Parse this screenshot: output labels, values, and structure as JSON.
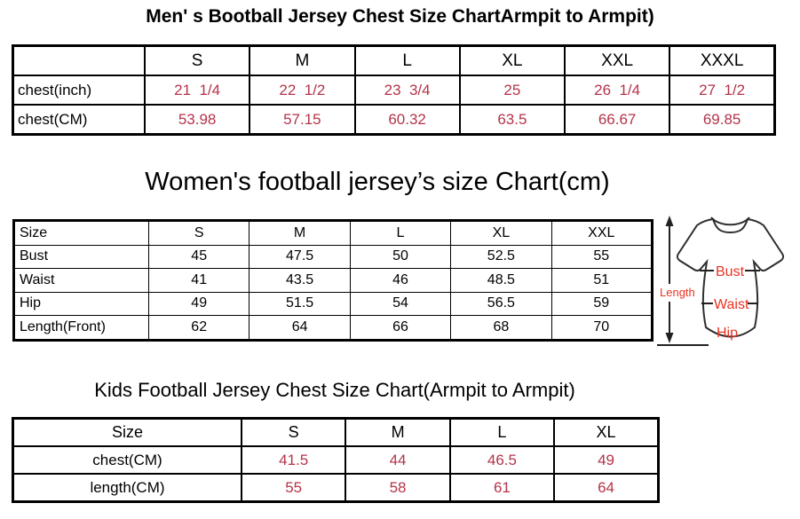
{
  "colors": {
    "table_value_red": "#b43349",
    "diagram_label_red": "#ea3323",
    "line_black": "#000000"
  },
  "chart_data": [
    {
      "type": "table",
      "title": "Men' s Bootball Jersey Chest Size ChartArmpit to Armpit)",
      "columns": [
        "",
        "S",
        "M",
        "L",
        "XL",
        "XXL",
        "XXXL"
      ],
      "rows": [
        {
          "label": "chest(inch)",
          "values": [
            "21  1/4",
            "22  1/2",
            "23  3/4",
            "25",
            "26  1/4",
            "27  1/2"
          ]
        },
        {
          "label": "chest(CM)",
          "values": [
            "53.98",
            "57.15",
            "60.32",
            "63.5",
            "66.67",
            "69.85"
          ]
        }
      ]
    },
    {
      "type": "table",
      "title": "Women's football jersey’s size Chart(cm)",
      "columns": [
        "Size",
        "S",
        "M",
        "L",
        "XL",
        "XXL"
      ],
      "rows": [
        {
          "label": "Bust",
          "values": [
            "45",
            "47.5",
            "50",
            "52.5",
            "55"
          ]
        },
        {
          "label": "Waist",
          "values": [
            "41",
            "43.5",
            "46",
            "48.5",
            "51"
          ]
        },
        {
          "label": "Hip",
          "values": [
            "49",
            "51.5",
            "54",
            "56.5",
            "59"
          ]
        },
        {
          "label": "Length(Front)",
          "values": [
            "62",
            "64",
            "66",
            "68",
            "70"
          ]
        }
      ]
    },
    {
      "type": "table",
      "title": "Kids Football Jersey Chest Size Chart(Armpit to Armpit)",
      "columns": [
        "Size",
        "S",
        "M",
        "L",
        "XL"
      ],
      "rows": [
        {
          "label": "chest(CM)",
          "values": [
            "41.5",
            "44",
            "46.5",
            "49"
          ]
        },
        {
          "label": "length(CM)",
          "values": [
            "55",
            "58",
            "61",
            "64"
          ]
        }
      ]
    }
  ],
  "diagram": {
    "length_label": "Length",
    "bust_label": "Bust",
    "waist_label": "Waist",
    "hip_label": "Hip"
  }
}
